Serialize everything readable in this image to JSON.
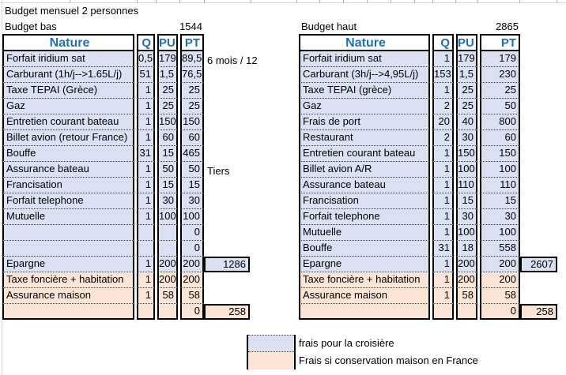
{
  "title": "Budget mensuel 2 personnes",
  "colors": {
    "header_text": "#1F6FB5",
    "row_blue": "#D9E1F2",
    "row_orange": "#FCE4D6",
    "border_color": "#000000",
    "gridline": "#D9D9D9"
  },
  "tables": [
    {
      "title": "Budget bas",
      "total": "1544",
      "columns": [
        "Nature",
        "Q",
        "PU",
        "PT"
      ],
      "rows": [
        {
          "nature": "Forfait iridium sat",
          "q": "0,5",
          "pu": "179",
          "pt": "89,5",
          "color": "blue",
          "note": "6 mois / 12"
        },
        {
          "nature": "Carburant (1h/j-->1.65L/j)",
          "q": "51",
          "pu": "1,5",
          "pt": "76,5",
          "color": "blue"
        },
        {
          "nature": "Taxe TEPAI (Grèce)",
          "q": "1",
          "pu": "25",
          "pt": "25",
          "color": "blue"
        },
        {
          "nature": "Gaz",
          "q": "1",
          "pu": "25",
          "pt": "25",
          "color": "blue"
        },
        {
          "nature": "Entretien courant bateau",
          "q": "1",
          "pu": "150",
          "pt": "150",
          "color": "blue"
        },
        {
          "nature": "Billet avion (retour France)",
          "q": "1",
          "pu": "60",
          "pt": "60",
          "color": "blue"
        },
        {
          "nature": "Bouffe",
          "q": "31",
          "pu": "15",
          "pt": "465",
          "color": "blue"
        },
        {
          "nature": "Assurance bateau",
          "q": "1",
          "pu": "50",
          "pt": "50",
          "color": "blue",
          "note": "Tiers"
        },
        {
          "nature": "Francisation",
          "q": "1",
          "pu": "15",
          "pt": "15",
          "color": "blue"
        },
        {
          "nature": "Forfait telephone",
          "q": "1",
          "pu": "30",
          "pt": "30",
          "color": "blue"
        },
        {
          "nature": "Mutuelle",
          "q": "1",
          "pu": "100",
          "pt": "100",
          "color": "blue"
        },
        {
          "nature": "",
          "q": "",
          "pu": "",
          "pt": "0",
          "color": "blue"
        },
        {
          "nature": "",
          "q": "",
          "pu": "",
          "pt": "0",
          "color": "blue"
        },
        {
          "nature": "Epargne",
          "q": "1",
          "pu": "200",
          "pt": "200",
          "color": "blue",
          "side": "1286"
        },
        {
          "nature": "Taxe foncière + habitation",
          "q": "1",
          "pu": "200",
          "pt": "200",
          "color": "orange"
        },
        {
          "nature": "Assurance maison",
          "q": "1",
          "pu": "58",
          "pt": "58",
          "color": "orange"
        },
        {
          "nature": "",
          "q": "",
          "pu": "",
          "pt": "0",
          "color": "orange",
          "side": "258"
        }
      ]
    },
    {
      "title": "Budget haut",
      "total": "2865",
      "columns": [
        "Nature",
        "Q",
        "PU",
        "PT"
      ],
      "rows": [
        {
          "nature": "Forfait iridium sat",
          "q": "1",
          "pu": "179",
          "pt": "179",
          "color": "blue"
        },
        {
          "nature": "Carburant (3h/j-->4,95L/j)",
          "q": "153",
          "pu": "1,5",
          "pt": "230",
          "color": "blue"
        },
        {
          "nature": "Taxe TEPAI (grèce)",
          "q": "1",
          "pu": "25",
          "pt": "25",
          "color": "blue"
        },
        {
          "nature": "Gaz",
          "q": "2",
          "pu": "25",
          "pt": "50",
          "color": "blue"
        },
        {
          "nature": "Frais de port",
          "q": "20",
          "pu": "40",
          "pt": "800",
          "color": "blue"
        },
        {
          "nature": "Restaurant",
          "q": "2",
          "pu": "30",
          "pt": "60",
          "color": "blue"
        },
        {
          "nature": "Entretien courant bateau",
          "q": "1",
          "pu": "150",
          "pt": "150",
          "color": "blue"
        },
        {
          "nature": "Billet avion A/R",
          "q": "1",
          "pu": "100",
          "pt": "100",
          "color": "blue"
        },
        {
          "nature": "Assurance bateau",
          "q": "1",
          "pu": "110",
          "pt": "110",
          "color": "blue"
        },
        {
          "nature": "Francisation",
          "q": "1",
          "pu": "15",
          "pt": "15",
          "color": "blue"
        },
        {
          "nature": "Forfait telephone",
          "q": "1",
          "pu": "30",
          "pt": "30",
          "color": "blue"
        },
        {
          "nature": "Mutuelle",
          "q": "1",
          "pu": "100",
          "pt": "100",
          "color": "blue"
        },
        {
          "nature": "Bouffe",
          "q": "31",
          "pu": "18",
          "pt": "558",
          "color": "blue"
        },
        {
          "nature": "Epargne",
          "q": "1",
          "pu": "200",
          "pt": "200",
          "color": "blue",
          "side": "2607"
        },
        {
          "nature": "Taxe foncière + habitation",
          "q": "1",
          "pu": "200",
          "pt": "200",
          "color": "orange"
        },
        {
          "nature": "Assurance maison",
          "q": "1",
          "pu": "58",
          "pt": "58",
          "color": "orange"
        },
        {
          "nature": "",
          "q": "",
          "pu": "",
          "pt": "0",
          "color": "orange",
          "side": "258"
        }
      ]
    }
  ],
  "legend": {
    "items": [
      {
        "label": "frais pour la croisière",
        "swatch": "blue"
      },
      {
        "label": "Frais si conservation maison en France",
        "swatch": "orange"
      }
    ]
  }
}
